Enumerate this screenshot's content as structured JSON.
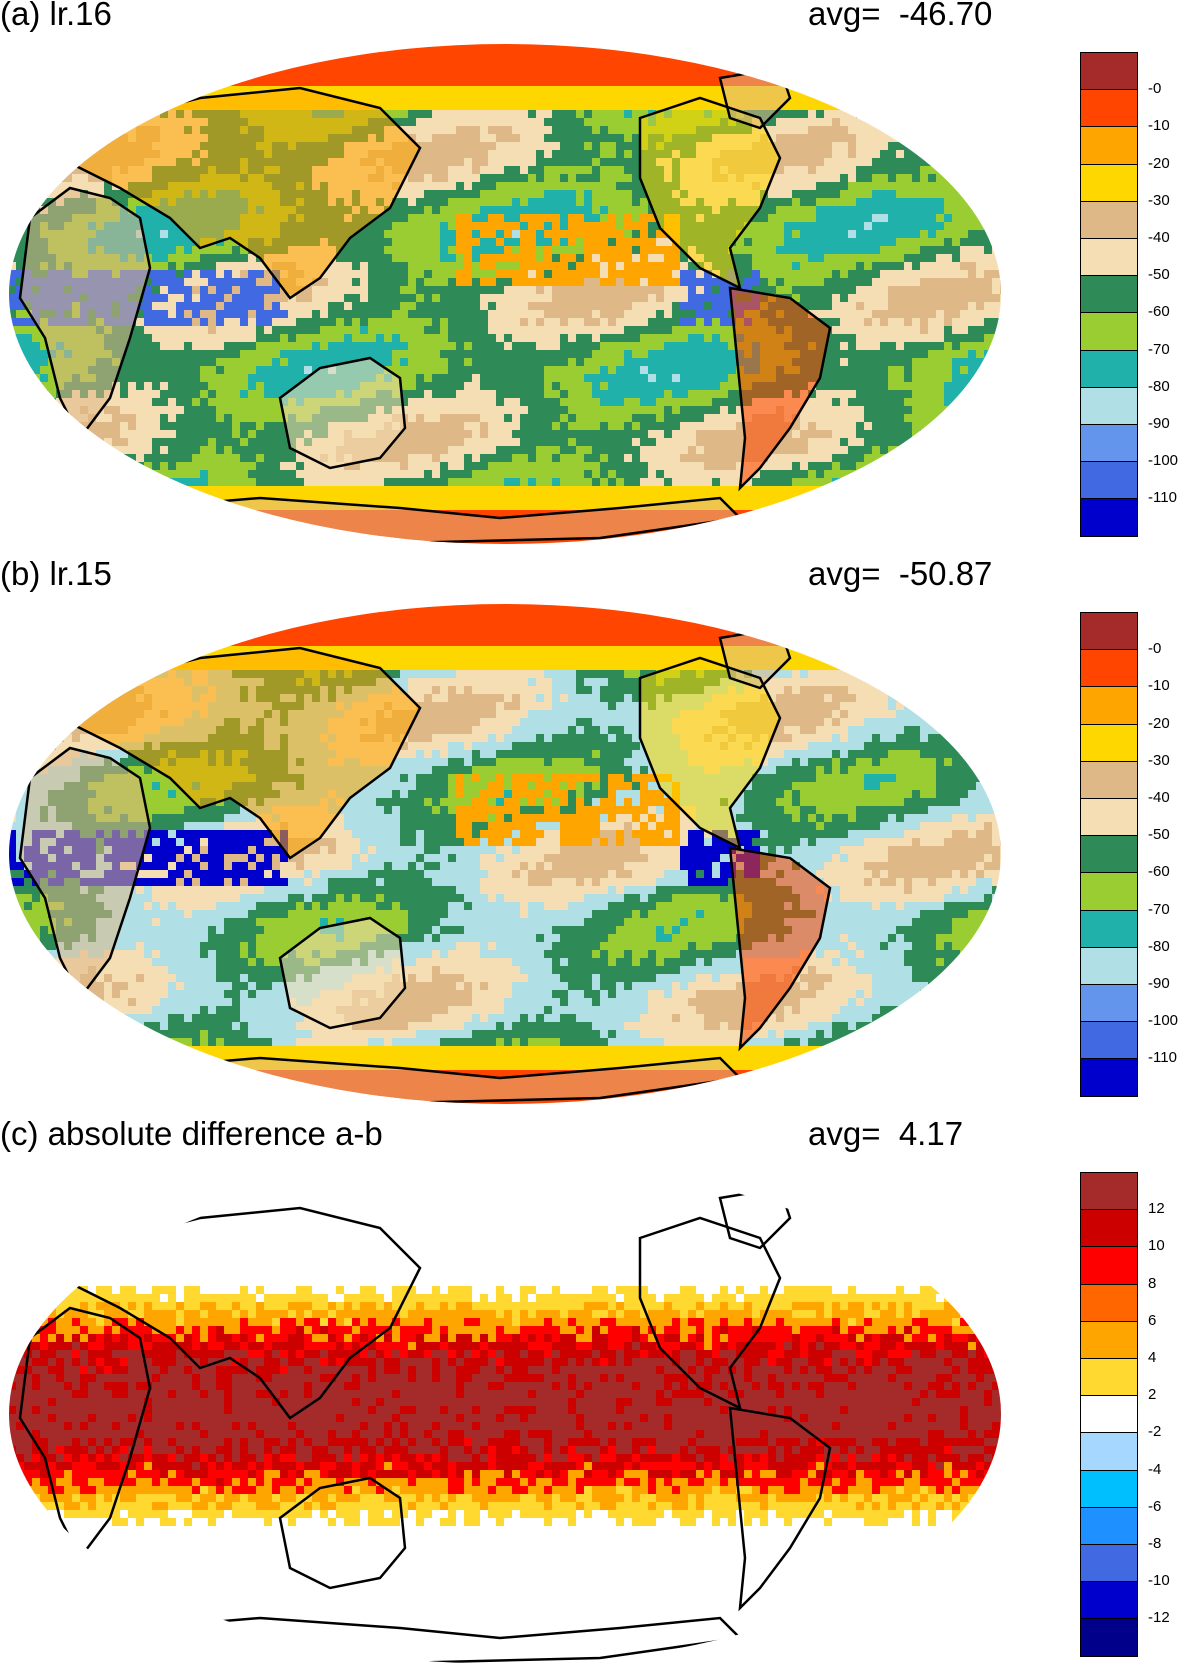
{
  "panels": [
    {
      "id": "a",
      "title": "(a) lr.16",
      "avg_label": "avg=",
      "avg_value": "-46.70",
      "colorbar": {
        "labels": [
          "-0",
          "-10",
          "-20",
          "-30",
          "-40",
          "-50",
          "-60",
          "-70",
          "-80",
          "-90",
          "-100",
          "-110"
        ],
        "colors": [
          "#a52a2a",
          "#ff4500",
          "#ffa500",
          "#ffd700",
          "#deb887",
          "#f5deb3",
          "#2e8b57",
          "#9acd32",
          "#20b2aa",
          "#b0e0e6",
          "#6495ed",
          "#4169e1",
          "#0000cd"
        ]
      }
    },
    {
      "id": "b",
      "title": "(b) lr.15",
      "avg_label": "avg=",
      "avg_value": "-50.87",
      "colorbar": {
        "labels": [
          "-0",
          "-10",
          "-20",
          "-30",
          "-40",
          "-50",
          "-60",
          "-70",
          "-80",
          "-90",
          "-100",
          "-110"
        ],
        "colors": [
          "#a52a2a",
          "#ff4500",
          "#ffa500",
          "#ffd700",
          "#deb887",
          "#f5deb3",
          "#2e8b57",
          "#9acd32",
          "#20b2aa",
          "#b0e0e6",
          "#6495ed",
          "#4169e1",
          "#0000cd"
        ]
      }
    },
    {
      "id": "c",
      "title": "(c) absolute difference a-b",
      "avg_label": "avg=",
      "avg_value": "4.17",
      "colorbar": {
        "labels": [
          "12",
          "10",
          "8",
          "6",
          "4",
          "2",
          "-2",
          "-4",
          "-6",
          "-8",
          "-10",
          "-12"
        ],
        "colors": [
          "#a52a2a",
          "#cd0000",
          "#ff0000",
          "#ff6600",
          "#ffa500",
          "#ffd92f",
          "#ffffff",
          "#a6d8ff",
          "#00bfff",
          "#1e90ff",
          "#4169e1",
          "#0000cd",
          "#00008b"
        ]
      }
    }
  ]
}
